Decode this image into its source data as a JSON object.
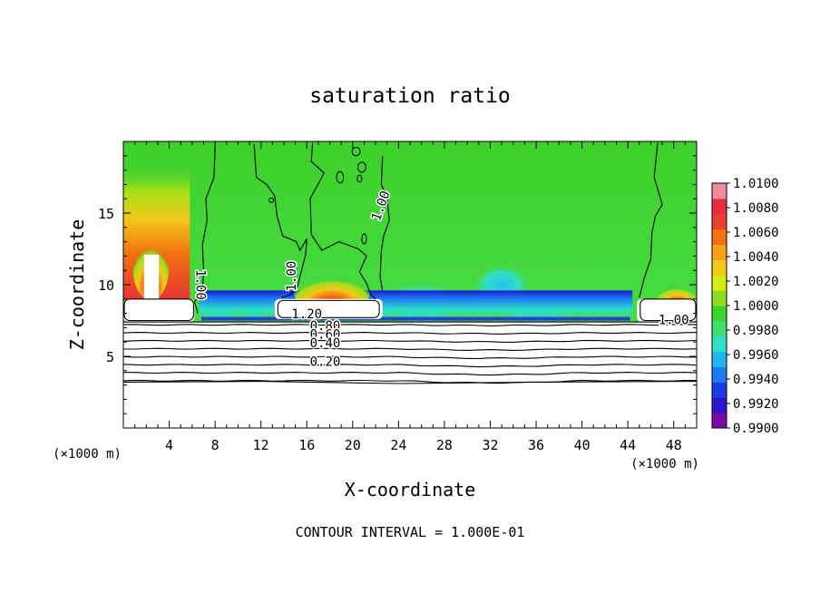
{
  "chart_data": {
    "type": "heatmap",
    "title": "saturation ratio",
    "xlabel": "X-coordinate",
    "ylabel": "Z-coordinate",
    "x_unit_label": "(×1000 m)",
    "y_unit_label": "(×1000 m)",
    "xlim": [
      0,
      50
    ],
    "ylim": [
      0,
      20
    ],
    "x_ticks": [
      4,
      8,
      12,
      16,
      20,
      24,
      28,
      32,
      36,
      40,
      44,
      48
    ],
    "y_ticks": [
      5,
      10,
      15
    ],
    "colorbar": {
      "min": 0.99,
      "max": 1.01,
      "tick_values": [
        "1.0100",
        "1.0080",
        "1.0060",
        "1.0040",
        "1.0020",
        "1.0000",
        "0.9980",
        "0.9960",
        "0.9940",
        "0.9920",
        "0.9900"
      ],
      "colors": [
        "#7a0aa8",
        "#2a16c8",
        "#1a3ce8",
        "#1e78f2",
        "#20b6f0",
        "#2ce0c8",
        "#40e070",
        "#3cd42c",
        "#8ede1e",
        "#d6ea14",
        "#f2c81a",
        "#f8a016",
        "#f27010",
        "#e84030",
        "#ea2c3c",
        "#f08a9a"
      ]
    },
    "contour_labels": [
      {
        "text": "1.00",
        "x": 6.7,
        "y": 10.0,
        "rotation": 90
      },
      {
        "text": "1.00",
        "x": 14.7,
        "y": 10.6,
        "rotation": -90
      },
      {
        "text": "1.00",
        "x": 22.5,
        "y": 15.5,
        "rotation": -70
      },
      {
        "text": "1.00",
        "x": 48.0,
        "y": 7.5,
        "rotation": 0
      },
      {
        "text": "1.20",
        "x": 16.0,
        "y": 7.9,
        "rotation": 0
      },
      {
        "text": "0.80",
        "x": 17.6,
        "y": 7.1,
        "rotation": 0
      },
      {
        "text": "0.60",
        "x": 17.6,
        "y": 6.5,
        "rotation": 0
      },
      {
        "text": "0.40",
        "x": 17.6,
        "y": 5.9,
        "rotation": 0
      },
      {
        "text": "0.20",
        "x": 17.6,
        "y": 4.6,
        "rotation": 0
      }
    ],
    "contour_levels_below_cloud": [
      0.2,
      0.3,
      0.4,
      0.5,
      0.6,
      0.7,
      0.8,
      0.9
    ],
    "contour_interval_text": "CONTOUR INTERVAL = 1.000E-01",
    "grid": false,
    "legend": "right"
  }
}
